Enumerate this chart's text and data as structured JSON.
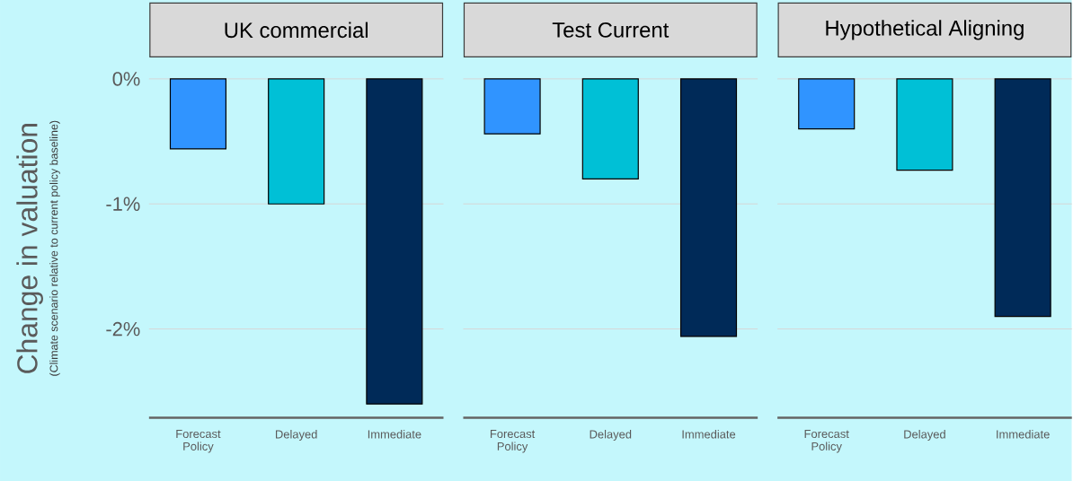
{
  "chart_data": [
    {
      "type": "bar",
      "title": "UK commercial",
      "ylabel": "Change in valuation",
      "annotations": [
        "(Climate scenario relative to current policy baseline)"
      ],
      "categories": [
        "Forecast Policy",
        "Delayed",
        "Immediate"
      ],
      "values": [
        -0.56,
        -1.0,
        -2.6
      ],
      "colors": [
        "#3094ff",
        "#00c0d6",
        "#002a58"
      ],
      "ylim": [
        -2.71,
        0
      ],
      "yticks": [
        {
          "value": -2,
          "label": "-2%"
        },
        {
          "value": -1,
          "label": "-1%"
        },
        {
          "value": 0,
          "label": "0%"
        }
      ],
      "grid": "y"
    },
    {
      "type": "bar",
      "title": "Test Current",
      "categories": [
        "Forecast Policy",
        "Delayed",
        "Immediate"
      ],
      "values": [
        -0.44,
        -0.8,
        -2.06
      ],
      "colors": [
        "#3094ff",
        "#00c0d6",
        "#002a58"
      ],
      "ylim": [
        -2.71,
        0
      ],
      "yticks": [
        {
          "value": -2,
          "label": null
        },
        {
          "value": -1,
          "label": null
        },
        {
          "value": 0,
          "label": null
        }
      ],
      "grid": "y",
      "tick_labels": "x"
    },
    {
      "type": "bar",
      "title": "Hypothetical Aligning",
      "categories": [
        "Forecast Policy",
        "Delayed",
        "Immediate"
      ],
      "values": [
        -0.4,
        -0.73,
        -1.9
      ],
      "colors": [
        "#3094ff",
        "#00c0d6",
        "#002a58"
      ],
      "ylim": [
        -2.71,
        0
      ],
      "yticks": [
        {
          "value": -2,
          "label": null
        },
        {
          "value": -1,
          "label": null
        },
        {
          "value": 0,
          "label": null
        }
      ],
      "grid": "y",
      "tick_labels": "x"
    }
  ]
}
